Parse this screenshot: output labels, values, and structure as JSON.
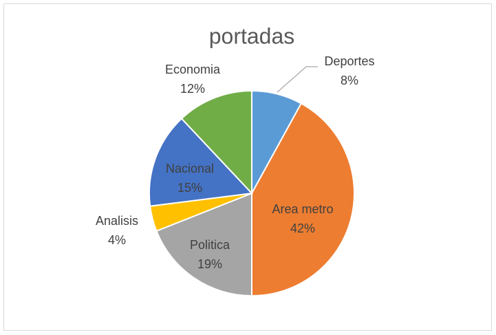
{
  "chart_data": {
    "type": "pie",
    "title": "portadas",
    "categories": [
      "Deportes",
      "Area metro",
      "Politica",
      "Analisis",
      "Nacional",
      "Economia"
    ],
    "values": [
      8,
      42,
      19,
      4,
      15,
      12
    ],
    "value_labels": [
      "8%",
      "42%",
      "19%",
      "4%",
      "15%",
      "12%"
    ],
    "colors": [
      "#5b9bd5",
      "#ed7d31",
      "#a5a5a5",
      "#ffc000",
      "#4472c4",
      "#70ad47"
    ]
  }
}
